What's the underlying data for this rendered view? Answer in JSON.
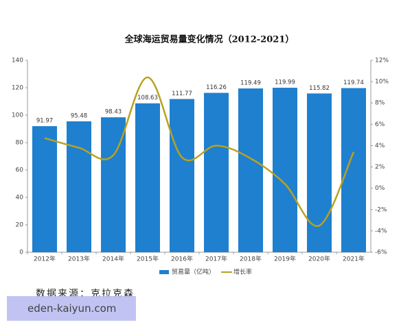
{
  "chart_data": {
    "type": "bar",
    "title": "全球海运贸易量变化情况（2012-2021）",
    "categories": [
      "2012年",
      "2013年",
      "2014年",
      "2015年",
      "2016年",
      "2017年",
      "2018年",
      "2019年",
      "2020年",
      "2021年"
    ],
    "series": [
      {
        "name": "贸易量（亿吨）",
        "type": "bar",
        "color": "#1f80cf",
        "values": [
          91.97,
          95.48,
          98.43,
          108.63,
          111.77,
          116.26,
          119.49,
          119.99,
          115.82,
          119.74
        ]
      },
      {
        "name": "增长率",
        "type": "line",
        "axis": "y2",
        "color": "#b9a21e",
        "values": [
          4.7,
          3.8,
          3.1,
          10.4,
          2.9,
          4.0,
          2.8,
          0.4,
          -3.5,
          3.4
        ]
      }
    ],
    "ylim": [
      0,
      140
    ],
    "yticks": [
      0,
      20,
      40,
      60,
      80,
      100,
      120,
      140
    ],
    "y2lim": [
      -6,
      12
    ],
    "y2ticks": [
      {
        "value": -6,
        "label": "-6%"
      },
      {
        "value": -4,
        "label": "-4%"
      },
      {
        "value": -2,
        "label": "-2%"
      },
      {
        "value": 0,
        "label": "0%"
      },
      {
        "value": 2,
        "label": "2%"
      },
      {
        "value": 4,
        "label": "4%"
      },
      {
        "value": 6,
        "label": "6%"
      },
      {
        "value": 8,
        "label": "8%"
      },
      {
        "value": 10,
        "label": "10%"
      },
      {
        "value": 12,
        "label": "12%"
      }
    ],
    "grid": false,
    "note": "数据来源：克拉克森",
    "watermark": "eden-kaiyun.com"
  }
}
